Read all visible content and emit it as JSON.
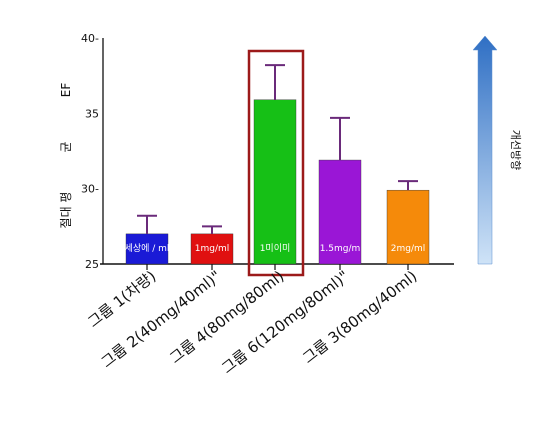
{
  "chart_data": {
    "type": "bar",
    "categories": [
      "그룹 1(차량)",
      "그룹 2(40mg/40ml)\"",
      "그룹 4(80mg/80ml)",
      "그룹 6(120mg/80ml)\"",
      "그룹 3(80mg/40ml)"
    ],
    "values": [
      27.0,
      27.0,
      35.9,
      31.9,
      29.9
    ],
    "errors": [
      1.2,
      0.5,
      2.3,
      2.8,
      0.6
    ],
    "bar_labels": [
      "세상에 / ml",
      "1mg/ml",
      "1미이미",
      "1.5mg/m",
      "2mg/ml"
    ],
    "bar_colors": [
      "#1a1ad6",
      "#e01010",
      "#16c016",
      "#9a16d6",
      "#f58a0a"
    ],
    "highlighted_index": 2,
    "highlight_color": "#9c1a1a",
    "ylim": [
      25,
      40
    ],
    "yticks": [
      {
        "value": 40,
        "label": "40-"
      },
      {
        "value": 35,
        "label": "35"
      },
      {
        "value": 30,
        "label": "30-"
      },
      {
        "value": 25,
        "label": "25"
      }
    ],
    "ylabel_parts": [
      "EF",
      "균",
      "절대 평"
    ],
    "direction_label": "개선방향",
    "direction_arrow_color": "#3d7fd1",
    "error_color": "#6a2a7a",
    "grid": false
  }
}
